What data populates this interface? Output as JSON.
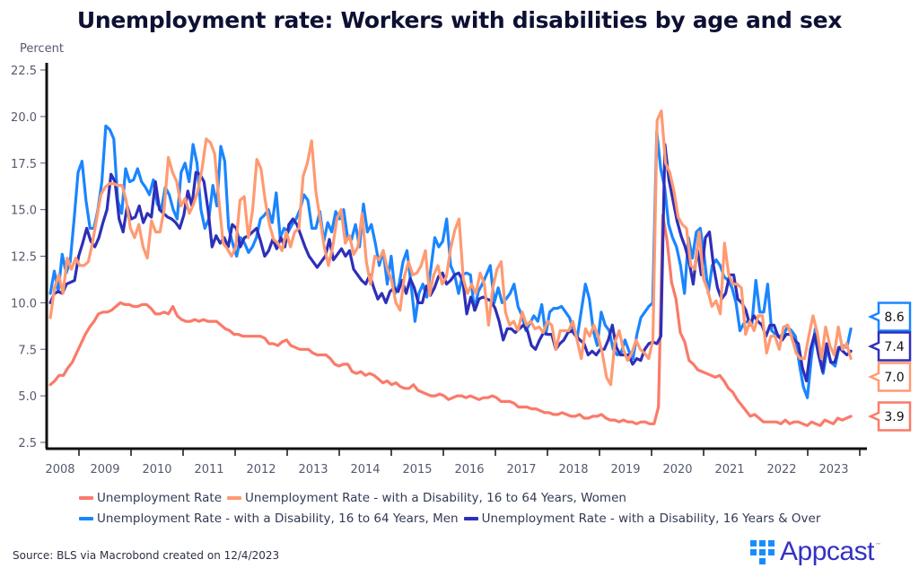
{
  "chart_data": {
    "type": "line",
    "title": "Unemployment rate: Workers with disabilities by age and sex",
    "ylabel": "Percent",
    "xlabel": "",
    "ylim": [
      2.5,
      22.5
    ],
    "yticks": [
      "2.5",
      "5.0",
      "7.5",
      "10.0",
      "12.5",
      "15.0",
      "17.5",
      "20.0",
      "22.5"
    ],
    "ytick_values": [
      2.5,
      5.0,
      7.5,
      10.0,
      12.5,
      15.0,
      17.5,
      20.0,
      22.5
    ],
    "xticks": [
      "2008",
      "2009",
      "2010",
      "2011",
      "2012",
      "2013",
      "2014",
      "2015",
      "2016",
      "2017",
      "2018",
      "2019",
      "2020",
      "2021",
      "2022",
      "2023"
    ],
    "x_start": 2008.45,
    "x_step_months": 1,
    "grid": false,
    "legend_position": "bottom",
    "series": [
      {
        "name": "Unemployment Rate",
        "color": "#fa7a6a",
        "end_label": "3.9",
        "values": [
          5.6,
          5.8,
          6.1,
          6.1,
          6.5,
          6.8,
          7.3,
          7.8,
          8.3,
          8.7,
          9.0,
          9.4,
          9.5,
          9.5,
          9.6,
          9.8,
          10.0,
          9.9,
          9.9,
          9.8,
          9.8,
          9.9,
          9.9,
          9.7,
          9.4,
          9.4,
          9.5,
          9.4,
          9.8,
          9.3,
          9.1,
          9.0,
          9.0,
          9.1,
          9.0,
          9.1,
          9.0,
          9.0,
          9.0,
          8.8,
          8.6,
          8.5,
          8.3,
          8.3,
          8.2,
          8.2,
          8.2,
          8.2,
          8.2,
          8.1,
          7.8,
          7.8,
          7.7,
          7.9,
          8.0,
          7.7,
          7.6,
          7.5,
          7.5,
          7.5,
          7.3,
          7.2,
          7.2,
          7.2,
          7.0,
          6.7,
          6.6,
          6.7,
          6.7,
          6.3,
          6.2,
          6.3,
          6.1,
          6.2,
          6.1,
          5.9,
          5.7,
          5.8,
          5.6,
          5.7,
          5.5,
          5.4,
          5.4,
          5.6,
          5.3,
          5.2,
          5.1,
          5.0,
          5.0,
          5.1,
          5.0,
          4.8,
          4.9,
          5.0,
          5.0,
          4.9,
          5.0,
          4.9,
          4.8,
          4.9,
          4.9,
          5.0,
          4.9,
          4.7,
          4.7,
          4.7,
          4.6,
          4.4,
          4.4,
          4.4,
          4.3,
          4.3,
          4.2,
          4.1,
          4.1,
          4.0,
          4.0,
          4.1,
          4.0,
          3.9,
          3.9,
          4.0,
          3.8,
          3.8,
          3.9,
          3.9,
          4.0,
          3.8,
          3.7,
          3.7,
          3.6,
          3.7,
          3.6,
          3.6,
          3.5,
          3.6,
          3.6,
          3.5,
          3.5,
          4.4,
          14.7,
          13.3,
          11.1,
          10.2,
          8.4,
          7.9,
          6.9,
          6.7,
          6.4,
          6.3,
          6.2,
          6.1,
          6.0,
          6.1,
          5.8,
          5.4,
          5.2,
          4.8,
          4.5,
          4.2,
          3.9,
          4.0,
          3.8,
          3.6,
          3.6,
          3.6,
          3.6,
          3.5,
          3.7,
          3.5,
          3.6,
          3.6,
          3.5,
          3.4,
          3.6,
          3.5,
          3.4,
          3.7,
          3.6,
          3.5,
          3.8,
          3.7,
          3.8,
          3.9
        ]
      },
      {
        "name": "Unemployment Rate - with a Disability, 16 to 64 Years, Women",
        "color": "#ff9a72",
        "end_label": "7.0",
        "values": [
          9.2,
          10.8,
          11.5,
          10.5,
          12.4,
          11.8,
          12.4,
          12.0,
          12.0,
          12.2,
          13.2,
          14.5,
          15.8,
          16.2,
          16.4,
          16.4,
          16.3,
          16.3,
          15.5,
          14.0,
          13.5,
          14.2,
          13.0,
          12.4,
          14.4,
          13.8,
          13.8,
          15.0,
          17.8,
          17.0,
          16.5,
          15.2,
          15.6,
          14.8,
          15.3,
          16.0,
          17.2,
          18.8,
          18.6,
          18.0,
          15.5,
          13.2,
          12.9,
          12.5,
          13.0,
          15.5,
          15.7,
          13.5,
          15.0,
          17.7,
          17.2,
          15.5,
          14.2,
          13.4,
          13.2,
          12.8,
          13.8,
          13.0,
          13.8,
          14.0,
          16.8,
          17.5,
          18.7,
          16.0,
          14.5,
          13.0,
          12.0,
          13.0,
          14.5,
          15.0,
          13.2,
          13.6,
          12.6,
          13.0,
          14.8,
          12.2,
          11.0,
          12.5,
          12.3,
          12.8,
          11.8,
          11.2,
          10.0,
          9.6,
          11.4,
          12.2,
          11.5,
          11.6,
          12.0,
          12.8,
          10.4,
          11.5,
          12.0,
          11.0,
          11.4,
          12.9,
          13.9,
          14.5,
          11.3,
          10.5,
          11.0,
          10.5,
          11.6,
          11.0,
          8.8,
          10.8,
          11.8,
          12.2,
          9.5,
          8.8,
          9.0,
          8.5,
          9.5,
          8.8,
          9.0,
          8.6,
          8.7,
          8.4,
          9.0,
          8.8,
          7.5,
          8.5,
          8.5,
          8.5,
          9.0,
          8.0,
          7.0,
          8.6,
          8.2,
          8.8,
          8.2,
          7.3,
          6.0,
          5.6,
          7.9,
          8.5,
          7.5,
          6.9,
          7.3,
          8.0,
          7.5,
          7.3,
          7.0,
          8.0,
          19.8,
          20.3,
          17.5,
          17.0,
          16.0,
          14.6,
          14.2,
          14.0,
          12.0,
          11.8,
          13.8,
          11.3,
          10.7,
          9.8,
          10.1,
          9.4,
          13.2,
          11.5,
          11.0,
          11.0,
          10.8,
          8.3,
          9.0,
          8.5,
          9.3,
          9.3,
          7.3,
          8.2,
          8.2,
          7.5,
          8.7,
          8.8,
          8.1,
          7.3,
          7.0,
          7.0,
          8.2,
          9.3,
          8.4,
          7.0,
          8.7,
          7.7,
          7.2,
          8.7,
          7.5,
          7.8,
          7.0
        ]
      },
      {
        "name": "Unemployment Rate - with a Disability, 16 to 64 Years, Men",
        "color": "#1a85ff",
        "end_label": "8.6",
        "values": [
          10.5,
          11.7,
          10.6,
          12.6,
          11.6,
          12.2,
          14.5,
          17.0,
          17.6,
          15.5,
          14.0,
          14.0,
          15.0,
          16.5,
          19.5,
          19.3,
          18.8,
          15.5,
          14.8,
          17.2,
          16.5,
          16.6,
          17.2,
          16.5,
          16.2,
          15.8,
          16.6,
          15.3,
          15.0,
          16.2,
          15.8,
          15.0,
          14.5,
          17.0,
          17.5,
          16.5,
          18.5,
          17.5,
          15.0,
          14.0,
          14.5,
          16.3,
          15.2,
          18.4,
          17.6,
          14.0,
          13.2,
          12.5,
          13.5,
          13.2,
          12.7,
          13.0,
          13.5,
          14.5,
          14.7,
          15.0,
          14.3,
          15.9,
          13.5,
          14.0,
          13.8,
          14.2,
          14.5,
          15.0,
          15.8,
          15.5,
          14.0,
          14.0,
          14.9,
          13.3,
          14.3,
          13.8,
          14.9,
          14.5,
          15.0,
          13.5,
          13.4,
          14.2,
          13.0,
          15.3,
          13.8,
          14.2,
          13.2,
          12.0,
          12.8,
          11.0,
          12.5,
          10.5,
          11.0,
          12.2,
          12.8,
          11.0,
          9.0,
          10.5,
          11.0,
          10.3,
          11.8,
          13.5,
          13.0,
          13.3,
          14.5,
          12.0,
          11.5,
          10.5,
          11.5,
          11.6,
          11.5,
          9.6,
          10.6,
          11.0,
          11.5,
          12.0,
          10.0,
          10.8,
          10.0,
          10.2,
          10.5,
          11.0,
          9.8,
          9.3,
          8.5,
          8.9,
          9.3,
          9.0,
          9.9,
          8.3,
          9.5,
          9.7,
          9.7,
          9.8,
          9.5,
          9.2,
          8.5,
          8.2,
          9.6,
          11.0,
          10.2,
          8.5,
          7.7,
          9.5,
          8.8,
          8.5,
          7.5,
          7.2,
          7.3,
          8.0,
          7.4,
          7.0,
          8.3,
          9.2,
          9.5,
          9.8,
          10.0,
          19.2,
          17.2,
          16.2,
          14.2,
          13.5,
          13.0,
          12.0,
          10.5,
          13.5,
          12.4,
          13.8,
          14.0,
          12.5,
          10.5,
          12.0,
          12.3,
          12.0,
          11.4,
          11.2,
          10.8,
          10.0,
          8.5,
          8.9,
          9.0,
          8.8,
          11.2,
          9.5,
          9.5,
          11.0,
          8.5,
          8.3,
          8.2,
          8.3,
          8.7,
          8.5,
          8.2,
          6.7,
          5.5,
          4.9,
          7.0,
          8.6,
          7.5,
          6.2,
          7.5,
          6.8,
          6.6,
          7.6,
          7.7,
          7.6,
          8.6
        ]
      },
      {
        "name": "Unemployment Rate - with a Disability, 16 Years & Over",
        "color": "#2e2fb8",
        "end_label": "7.4",
        "values": [
          10.0,
          10.5,
          10.6,
          10.5,
          11.0,
          11.1,
          11.2,
          12.5,
          13.2,
          14.0,
          13.3,
          13.0,
          13.5,
          14.3,
          15.0,
          16.9,
          16.5,
          14.5,
          13.8,
          15.2,
          14.5,
          14.6,
          15.2,
          14.3,
          14.8,
          14.6,
          16.5,
          15.0,
          14.8,
          14.6,
          14.5,
          14.3,
          14.0,
          14.7,
          16.0,
          15.2,
          17.0,
          16.9,
          16.5,
          15.0,
          13.0,
          13.6,
          13.2,
          13.5,
          13.0,
          14.2,
          14.0,
          13.0,
          13.5,
          13.6,
          13.8,
          14.0,
          13.3,
          12.5,
          12.8,
          13.4,
          12.9,
          13.5,
          13.0,
          14.2,
          14.5,
          14.2,
          13.6,
          13.0,
          12.5,
          12.2,
          11.9,
          12.2,
          12.5,
          13.4,
          12.3,
          12.6,
          12.9,
          12.5,
          12.8,
          11.8,
          11.5,
          11.2,
          11.0,
          11.5,
          10.8,
          10.2,
          10.5,
          10.0,
          10.6,
          10.8,
          10.6,
          11.2,
          10.5,
          11.3,
          10.8,
          10.0,
          10.0,
          10.9,
          10.4,
          10.8,
          11.4,
          11.6,
          11.0,
          11.2,
          11.5,
          11.6,
          11.2,
          9.4,
          10.3,
          9.6,
          10.2,
          10.3,
          10.2,
          10.1,
          9.7,
          9.0,
          8.0,
          8.6,
          8.6,
          8.4,
          8.6,
          8.8,
          8.5,
          7.7,
          7.5,
          8.0,
          8.4,
          8.3,
          8.3,
          7.5,
          7.8,
          8.0,
          8.4,
          8.5,
          8.2,
          8.0,
          7.8,
          7.2,
          7.4,
          7.2,
          7.5,
          7.5,
          8.0,
          8.8,
          7.6,
          7.2,
          7.2,
          7.2,
          6.7,
          7.0,
          6.9,
          7.5,
          7.8,
          7.9,
          7.8,
          8.2,
          18.5,
          16.6,
          15.5,
          14.4,
          13.6,
          13.0,
          12.2,
          11.0,
          12.9,
          11.5,
          13.5,
          13.8,
          12.0,
          10.8,
          10.2,
          10.5,
          11.5,
          11.5,
          10.2,
          10.0,
          9.6,
          8.8,
          9.3,
          9.0,
          8.8,
          8.2,
          8.8,
          8.8,
          8.2,
          8.0,
          8.3,
          8.3,
          8.0,
          7.8,
          6.5,
          5.8,
          7.5,
          8.3,
          7.2,
          6.3,
          7.8,
          6.8,
          6.8,
          7.6,
          7.4,
          7.2,
          7.4
        ]
      }
    ]
  },
  "header": {
    "title": "Unemployment rate: Workers with disabilities by age and sex",
    "y_axis_unit": "Percent"
  },
  "legend": {
    "items": [
      {
        "label": "Unemployment Rate",
        "color": "#fa7a6a"
      },
      {
        "label": "Unemployment Rate - with a Disability, 16 to 64 Years, Women",
        "color": "#ff9a72"
      },
      {
        "label": "Unemployment Rate - with a Disability, 16 to 64 Years, Men",
        "color": "#1a85ff"
      },
      {
        "label": "Unemployment Rate - with a Disability, 16 Years & Over",
        "color": "#2e2fb8"
      }
    ]
  },
  "footer": {
    "source": "Source: BLS via Macrobond created on 12/4/2023",
    "brand": "Appcast",
    "trademark": "™"
  }
}
